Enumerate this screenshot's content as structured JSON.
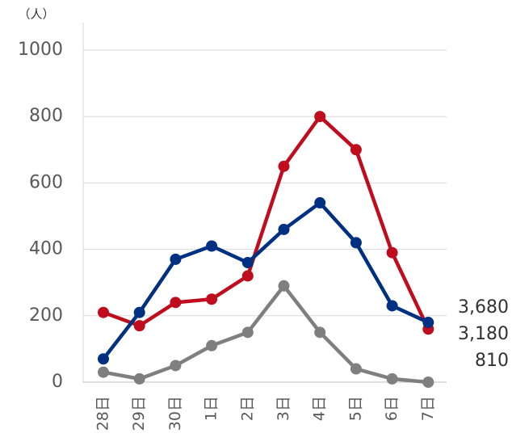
{
  "chart_data": {
    "type": "line",
    "unit_label": "（人）",
    "categories": [
      "28日",
      "29日",
      "30日",
      "1日",
      "2日",
      "3日",
      "4日",
      "5日",
      "6日",
      "7日"
    ],
    "series": [
      {
        "color": "#c00d1e",
        "values": [
          210,
          170,
          240,
          250,
          320,
          650,
          800,
          700,
          390,
          160
        ]
      },
      {
        "color": "#003082",
        "values": [
          70,
          210,
          370,
          410,
          360,
          460,
          540,
          420,
          230,
          180
        ]
      },
      {
        "color": "#7f7f7f",
        "values": [
          30,
          10,
          50,
          110,
          150,
          290,
          150,
          40,
          10,
          0
        ]
      }
    ],
    "annotations": [
      "3,680",
      "3,180",
      "810"
    ],
    "ylim": [
      0,
      1000
    ],
    "yticks": [
      0,
      200,
      400,
      600,
      800,
      1000
    ],
    "grid": true
  }
}
